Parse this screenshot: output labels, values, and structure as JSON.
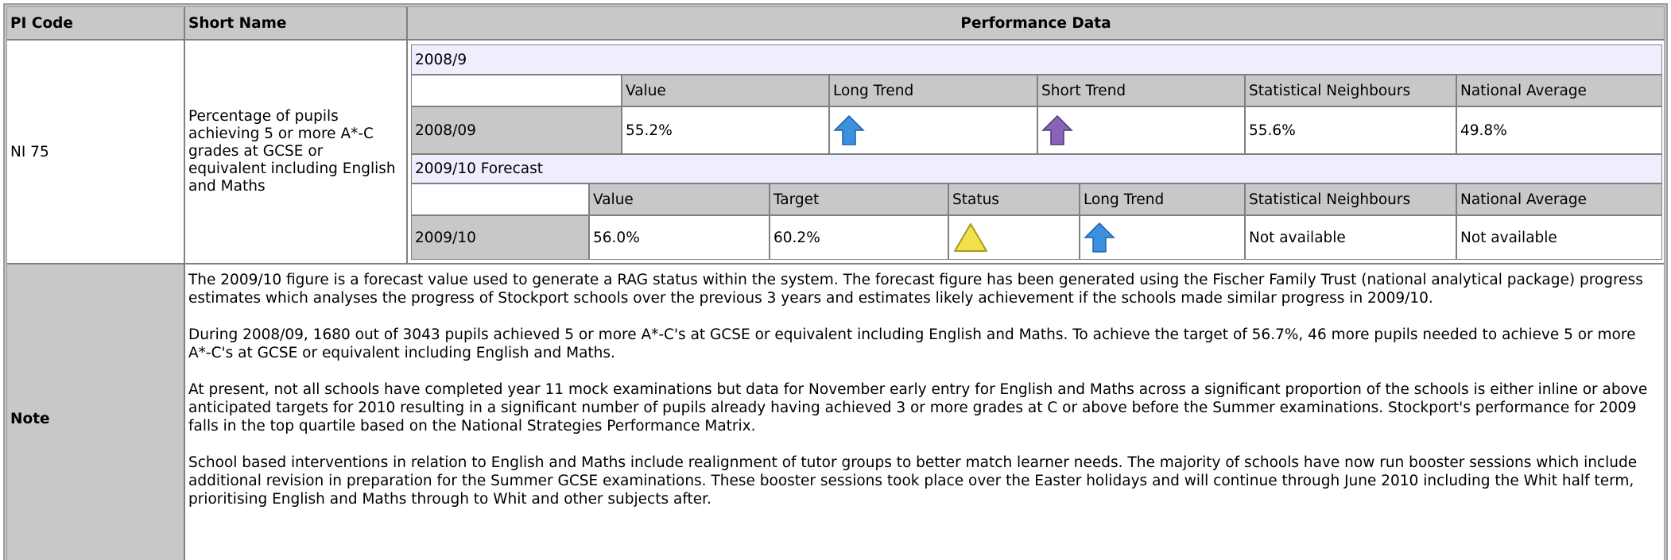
{
  "header": {
    "pi_code": "PI Code",
    "short_name": "Short Name",
    "performance_data": "Performance Data"
  },
  "row": {
    "pi_code": "NI 75",
    "short_name": "Percentage of pupils achieving 5 or more A*-C grades at GCSE or equivalent including English and Maths"
  },
  "actual": {
    "title": "2008/9",
    "columns": [
      "Value",
      "Long Trend",
      "Short Trend",
      "Statistical Neighbours",
      "National Average"
    ],
    "period": "2008/09",
    "value": "55.2%",
    "statistical_neighbours": "55.6%",
    "national_average": "49.8%"
  },
  "forecast": {
    "title": "2009/10 Forecast",
    "columns": [
      "Value",
      "Target",
      "Status",
      "Long Trend",
      "Statistical Neighbours",
      "National Average"
    ],
    "period": "2009/10",
    "value": "56.0%",
    "target": "60.2%",
    "statistical_neighbours": "Not available",
    "national_average": "Not available"
  },
  "note": {
    "label": "Note",
    "paragraphs": [
      "The 2009/10 figure is a forecast value used to generate a RAG status within the system.   The forecast figure has been generated using the Fischer Family Trust (national analytical package) progress estimates which analyses the progress of Stockport schools over the previous 3 years and estimates likely achievement if the schools made similar progress in 2009/10.",
      "During 2008/09, 1680 out of 3043 pupils achieved 5 or more A*-C's at GCSE or equivalent including English and Maths. To achieve the target of 56.7%, 46 more pupils needed to achieve 5 or more A*-C's at GCSE or equivalent including English and Maths.",
      "At present, not all schools have completed year 11 mock examinations but data for November early entry for English and Maths across a significant proportion of the schools is either inline or above anticipated targets for 2010 resulting in a significant number of pupils already having achieved 3 or more grades at C or above before the Summer examinations. Stockport's performance for 2009 falls in the top quartile based on the National Strategies Performance Matrix.",
      "School based interventions in relation to English and Maths include realignment of tutor groups to better match learner needs. The majority of schools have now run booster sessions which include additional revision in preparation for the Summer GCSE examinations. These booster sessions took place over the Easter holidays and will continue through June 2010 including the Whit half term, prioritising English and Maths through to Whit and other subjects after."
    ]
  }
}
